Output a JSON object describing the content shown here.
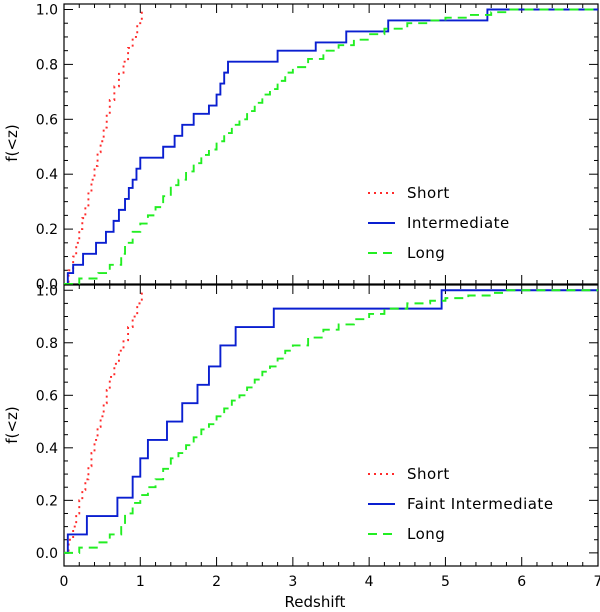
{
  "figure": {
    "xlabel": "Redshift",
    "ylabel": "f(<z)"
  },
  "styles": {
    "short": {
      "color": "#ff2a2a",
      "dash": "dotted"
    },
    "intermediate": {
      "color": "#0a1fd0",
      "dash": "solid"
    },
    "long": {
      "color": "#22ee22",
      "dash": "dashed"
    }
  },
  "chart_data": [
    {
      "type": "line",
      "subtype": "cumulative-step",
      "title": "",
      "xlabel": "Redshift",
      "ylabel": "f(<z)",
      "xlim": [
        0,
        7
      ],
      "ylim": [
        0,
        1.02
      ],
      "xticks": [
        0,
        1,
        2,
        3,
        4,
        5,
        6,
        7
      ],
      "yticks": [
        0.0,
        0.2,
        0.4,
        0.6,
        0.8,
        1.0
      ],
      "ytick_labels": [
        "0.0",
        "0.2",
        "0.4",
        "0.6",
        "0.8",
        "1.0"
      ],
      "legend": {
        "placement": "lower-right",
        "entries": [
          "Short",
          "Intermediate",
          "Long"
        ]
      },
      "series": [
        {
          "name": "Short",
          "style": "short",
          "x": [
            0,
            0.06,
            0.12,
            0.16,
            0.2,
            0.24,
            0.28,
            0.32,
            0.36,
            0.4,
            0.44,
            0.48,
            0.52,
            0.56,
            0.6,
            0.66,
            0.72,
            0.78,
            0.84,
            0.9,
            0.96,
            1.02
          ],
          "y": [
            0,
            0.05,
            0.1,
            0.15,
            0.2,
            0.24,
            0.28,
            0.33,
            0.38,
            0.43,
            0.48,
            0.52,
            0.57,
            0.62,
            0.67,
            0.72,
            0.77,
            0.81,
            0.86,
            0.9,
            0.95,
            1.0
          ]
        },
        {
          "name": "Intermediate",
          "style": "intermediate",
          "x": [
            0,
            0.05,
            0.12,
            0.25,
            0.42,
            0.55,
            0.65,
            0.72,
            0.8,
            0.85,
            0.9,
            0.95,
            1.0,
            1.05,
            1.3,
            1.45,
            1.55,
            1.7,
            1.9,
            2.0,
            2.05,
            2.1,
            2.15,
            2.25,
            2.8,
            3.3,
            3.7,
            4.25,
            5.55
          ],
          "y": [
            0,
            0.04,
            0.07,
            0.11,
            0.15,
            0.19,
            0.23,
            0.27,
            0.31,
            0.35,
            0.38,
            0.42,
            0.46,
            0.46,
            0.5,
            0.54,
            0.58,
            0.62,
            0.65,
            0.69,
            0.73,
            0.77,
            0.81,
            0.81,
            0.85,
            0.88,
            0.92,
            0.96,
            1.0
          ]
        },
        {
          "name": "Long",
          "style": "long",
          "x": [
            0,
            0.2,
            0.45,
            0.6,
            0.75,
            0.8,
            0.9,
            1.0,
            1.1,
            1.2,
            1.3,
            1.4,
            1.5,
            1.6,
            1.7,
            1.8,
            1.9,
            2.0,
            2.1,
            2.2,
            2.3,
            2.4,
            2.5,
            2.6,
            2.7,
            2.8,
            2.9,
            3.0,
            3.2,
            3.4,
            3.6,
            3.8,
            4.0,
            4.2,
            4.5,
            4.8,
            5.0,
            5.3,
            5.6,
            5.8
          ],
          "y": [
            0,
            0.02,
            0.04,
            0.07,
            0.11,
            0.15,
            0.19,
            0.22,
            0.25,
            0.28,
            0.32,
            0.36,
            0.38,
            0.41,
            0.44,
            0.47,
            0.49,
            0.52,
            0.55,
            0.58,
            0.6,
            0.63,
            0.66,
            0.69,
            0.71,
            0.74,
            0.77,
            0.79,
            0.82,
            0.85,
            0.87,
            0.89,
            0.91,
            0.93,
            0.95,
            0.96,
            0.97,
            0.98,
            0.99,
            1.0
          ]
        }
      ]
    },
    {
      "type": "line",
      "subtype": "cumulative-step",
      "title": "",
      "xlabel": "Redshift",
      "ylabel": "f(<z)",
      "xlim": [
        0,
        7
      ],
      "ylim": [
        -0.05,
        1.02
      ],
      "xticks": [
        0,
        1,
        2,
        3,
        4,
        5,
        6,
        7
      ],
      "yticks": [
        0.0,
        0.2,
        0.4,
        0.6,
        0.8,
        1.0
      ],
      "ytick_labels": [
        "0.0",
        "0.2",
        "0.4",
        "0.6",
        "0.8",
        "1.0"
      ],
      "legend": {
        "placement": "lower-right",
        "entries": [
          "Short",
          "Faint Intermediate",
          "Long"
        ]
      },
      "series": [
        {
          "name": "Short",
          "style": "short",
          "x": [
            0,
            0.06,
            0.12,
            0.16,
            0.2,
            0.24,
            0.28,
            0.32,
            0.36,
            0.4,
            0.44,
            0.48,
            0.52,
            0.56,
            0.6,
            0.66,
            0.72,
            0.78,
            0.84,
            0.9,
            0.96,
            1.02
          ],
          "y": [
            0,
            0.05,
            0.1,
            0.15,
            0.2,
            0.24,
            0.28,
            0.33,
            0.38,
            0.43,
            0.48,
            0.52,
            0.57,
            0.62,
            0.67,
            0.72,
            0.77,
            0.81,
            0.86,
            0.9,
            0.95,
            1.0
          ]
        },
        {
          "name": "Faint Intermediate",
          "style": "intermediate",
          "x": [
            0,
            0.05,
            0.3,
            0.7,
            0.9,
            1.0,
            1.1,
            1.35,
            1.55,
            1.75,
            1.9,
            2.05,
            2.25,
            2.75,
            4.95
          ],
          "y": [
            0,
            0.07,
            0.14,
            0.21,
            0.29,
            0.36,
            0.43,
            0.5,
            0.57,
            0.64,
            0.71,
            0.79,
            0.86,
            0.93,
            1.0
          ]
        },
        {
          "name": "Long",
          "style": "long",
          "x": [
            0,
            0.2,
            0.45,
            0.6,
            0.75,
            0.8,
            0.9,
            1.0,
            1.1,
            1.2,
            1.3,
            1.4,
            1.5,
            1.6,
            1.7,
            1.8,
            1.9,
            2.0,
            2.1,
            2.2,
            2.3,
            2.4,
            2.5,
            2.6,
            2.7,
            2.8,
            2.9,
            3.0,
            3.2,
            3.4,
            3.6,
            3.8,
            4.0,
            4.2,
            4.5,
            4.8,
            5.0,
            5.3,
            5.6,
            5.8
          ],
          "y": [
            0,
            0.02,
            0.04,
            0.07,
            0.11,
            0.15,
            0.19,
            0.22,
            0.25,
            0.28,
            0.32,
            0.36,
            0.38,
            0.41,
            0.44,
            0.47,
            0.49,
            0.52,
            0.55,
            0.58,
            0.6,
            0.63,
            0.66,
            0.69,
            0.71,
            0.74,
            0.77,
            0.79,
            0.82,
            0.85,
            0.87,
            0.89,
            0.91,
            0.93,
            0.95,
            0.96,
            0.97,
            0.98,
            0.99,
            1.0
          ]
        }
      ]
    }
  ]
}
